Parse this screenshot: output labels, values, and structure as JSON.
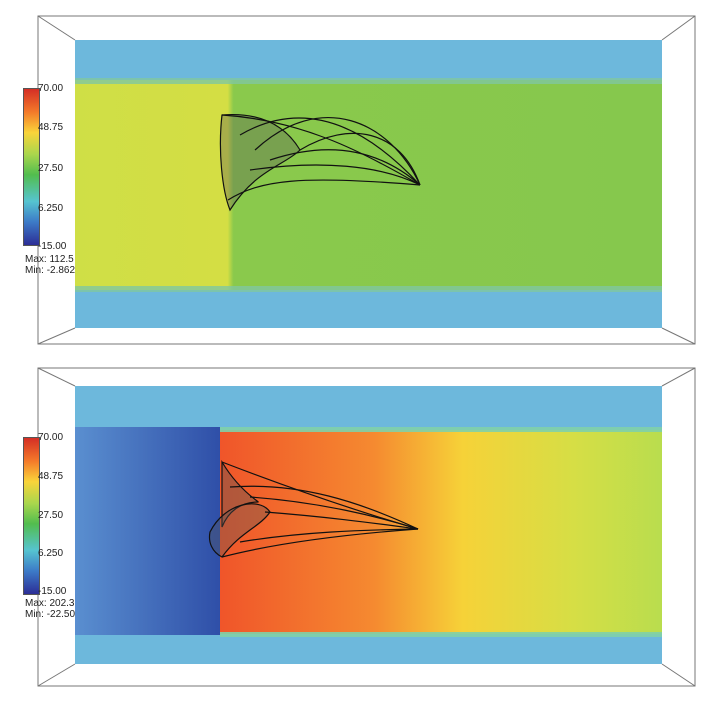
{
  "panels": [
    {
      "colorbar": {
        "ticks": [
          "70.00",
          "48.75",
          "27.50",
          "6.250",
          "-15.00"
        ],
        "max_label": "Max:",
        "max_value": "112.5",
        "min_label": "Min:",
        "min_value": "-2.862"
      },
      "colors": {
        "channel": "#6db8dc",
        "inflow": "#cfdf46",
        "downstream": "#86c84d",
        "wall": "#5aa9d6"
      }
    },
    {
      "colorbar": {
        "ticks": [
          "70.00",
          "48.75",
          "27.50",
          "6.250",
          "-15.00"
        ],
        "max_label": "Max:",
        "max_value": "202.3",
        "min_label": "Min:",
        "min_value": "-22.50"
      },
      "colors": {
        "channel": "#6db8dc",
        "upstream": "#3c68c0",
        "hot": "#f0552a",
        "warm": "#f6d238",
        "cool": "#b9dd4e"
      }
    }
  ],
  "colormap": [
    "#d42e25",
    "#f47b2a",
    "#f9d43a",
    "#a9d64d",
    "#52bd4e",
    "#56c4d0",
    "#3d7cc8",
    "#2c2e96"
  ]
}
